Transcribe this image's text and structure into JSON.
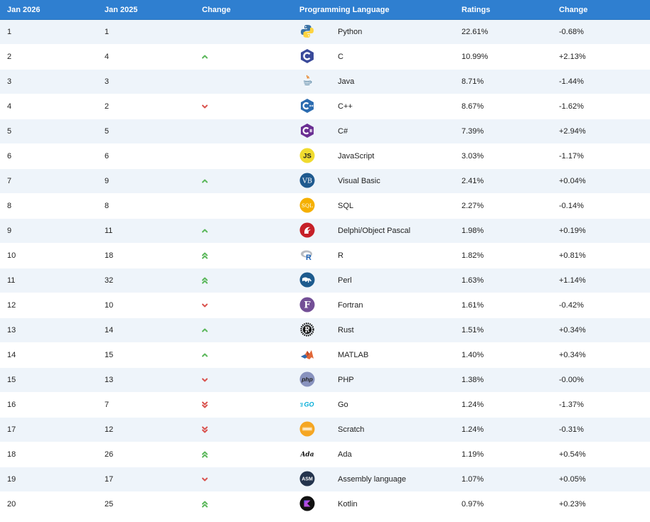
{
  "table": {
    "headers": {
      "current_year": "Jan 2026",
      "previous_year": "Jan 2025",
      "change": "Change",
      "language": "Programming Language",
      "ratings": "Ratings",
      "rating_change": "Change"
    },
    "rows": [
      {
        "rank": "1",
        "prev": "1",
        "trend": "none",
        "icon": "python-logo-icon",
        "language": "Python",
        "rating": "22.61%",
        "delta": "-0.68%"
      },
      {
        "rank": "2",
        "prev": "4",
        "trend": "up",
        "icon": "c-logo-icon",
        "language": "C",
        "rating": "10.99%",
        "delta": "+2.13%"
      },
      {
        "rank": "3",
        "prev": "3",
        "trend": "none",
        "icon": "java-logo-icon",
        "language": "Java",
        "rating": "8.71%",
        "delta": "-1.44%"
      },
      {
        "rank": "4",
        "prev": "2",
        "trend": "down",
        "icon": "cpp-logo-icon",
        "language": "C++",
        "rating": "8.67%",
        "delta": "-1.62%"
      },
      {
        "rank": "5",
        "prev": "5",
        "trend": "none",
        "icon": "csharp-logo-icon",
        "language": "C#",
        "rating": "7.39%",
        "delta": "+2.94%"
      },
      {
        "rank": "6",
        "prev": "6",
        "trend": "none",
        "icon": "javascript-logo-icon",
        "language": "JavaScript",
        "rating": "3.03%",
        "delta": "-1.17%"
      },
      {
        "rank": "7",
        "prev": "9",
        "trend": "up",
        "icon": "visual-basic-logo-icon",
        "language": "Visual Basic",
        "rating": "2.41%",
        "delta": "+0.04%"
      },
      {
        "rank": "8",
        "prev": "8",
        "trend": "none",
        "icon": "sql-logo-icon",
        "language": "SQL",
        "rating": "2.27%",
        "delta": "-0.14%"
      },
      {
        "rank": "9",
        "prev": "11",
        "trend": "up",
        "icon": "delphi-logo-icon",
        "language": "Delphi/Object Pascal",
        "rating": "1.98%",
        "delta": "+0.19%"
      },
      {
        "rank": "10",
        "prev": "18",
        "trend": "double-up",
        "icon": "r-logo-icon",
        "language": "R",
        "rating": "1.82%",
        "delta": "+0.81%"
      },
      {
        "rank": "11",
        "prev": "32",
        "trend": "double-up",
        "icon": "perl-logo-icon",
        "language": "Perl",
        "rating": "1.63%",
        "delta": "+1.14%"
      },
      {
        "rank": "12",
        "prev": "10",
        "trend": "down",
        "icon": "fortran-logo-icon",
        "language": "Fortran",
        "rating": "1.61%",
        "delta": "-0.42%"
      },
      {
        "rank": "13",
        "prev": "14",
        "trend": "up",
        "icon": "rust-logo-icon",
        "language": "Rust",
        "rating": "1.51%",
        "delta": "+0.34%"
      },
      {
        "rank": "14",
        "prev": "15",
        "trend": "up",
        "icon": "matlab-logo-icon",
        "language": "MATLAB",
        "rating": "1.40%",
        "delta": "+0.34%"
      },
      {
        "rank": "15",
        "prev": "13",
        "trend": "down",
        "icon": "php-logo-icon",
        "language": "PHP",
        "rating": "1.38%",
        "delta": "-0.00%"
      },
      {
        "rank": "16",
        "prev": "7",
        "trend": "double-down",
        "icon": "go-logo-icon",
        "language": "Go",
        "rating": "1.24%",
        "delta": "-1.37%"
      },
      {
        "rank": "17",
        "prev": "12",
        "trend": "double-down",
        "icon": "scratch-logo-icon",
        "language": "Scratch",
        "rating": "1.24%",
        "delta": "-0.31%"
      },
      {
        "rank": "18",
        "prev": "26",
        "trend": "double-up",
        "icon": "ada-logo-icon",
        "language": "Ada",
        "rating": "1.19%",
        "delta": "+0.54%"
      },
      {
        "rank": "19",
        "prev": "17",
        "trend": "down",
        "icon": "assembly-logo-icon",
        "language": "Assembly language",
        "rating": "1.07%",
        "delta": "+0.05%"
      },
      {
        "rank": "20",
        "prev": "25",
        "trend": "double-up",
        "icon": "kotlin-logo-icon",
        "language": "Kotlin",
        "rating": "0.97%",
        "delta": "+0.23%"
      }
    ]
  },
  "logo_text": {
    "sql": "SQL",
    "js": "JS",
    "vb": "VB",
    "php": "php",
    "go": "GO",
    "ada": "Ada",
    "asm": "ASM",
    "fortran": "F",
    "r": "R"
  },
  "colors": {
    "header_bg": "#2f7fd0",
    "row_alt_bg": "#eef4fa",
    "trend_up": "#5cb85c",
    "trend_down": "#d9534f"
  }
}
